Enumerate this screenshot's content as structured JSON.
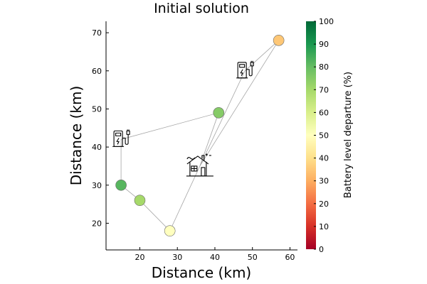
{
  "chart_data": {
    "type": "scatter",
    "title": "Initial solution",
    "xlabel": "Distance (km)",
    "ylabel": "Distance (km)",
    "xlim": [
      11,
      62
    ],
    "ylim": [
      13,
      73
    ],
    "x_ticks": [
      20,
      30,
      40,
      50,
      60
    ],
    "y_ticks": [
      20,
      30,
      40,
      50,
      60,
      70
    ],
    "grid": false,
    "points": [
      {
        "x": 15,
        "y": 30,
        "battery": 82
      },
      {
        "x": 20,
        "y": 26,
        "battery": 70
      },
      {
        "x": 28,
        "y": 18,
        "battery": 50
      },
      {
        "x": 41,
        "y": 49,
        "battery": 75
      },
      {
        "x": 57,
        "y": 68,
        "battery": 35
      }
    ],
    "depot": {
      "x": 36,
      "y": 35,
      "icon": "house-icon"
    },
    "charging_stations": [
      {
        "x": 15,
        "y": 42,
        "icon": "ev-charger-icon"
      },
      {
        "x": 48,
        "y": 60,
        "icon": "ev-charger-icon"
      }
    ],
    "routes": [
      [
        [
          36,
          35
        ],
        [
          41,
          49
        ],
        [
          15,
          42
        ],
        [
          15,
          30
        ],
        [
          20,
          26
        ],
        [
          28,
          18
        ],
        [
          36,
          35
        ]
      ],
      [
        [
          36,
          35
        ],
        [
          48,
          60
        ],
        [
          57,
          68
        ],
        [
          36,
          35
        ]
      ]
    ],
    "route_color": "#a6a6a6",
    "colorbar": {
      "label": "Battery level departure (%)",
      "min": 0,
      "max": 100,
      "ticks": [
        0,
        10,
        20,
        30,
        40,
        50,
        60,
        70,
        80,
        90,
        100
      ],
      "colormap": [
        "#a50026",
        "#d73027",
        "#f46d43",
        "#fdae61",
        "#fee08b",
        "#ffffbf",
        "#d9ef8b",
        "#a6d96a",
        "#66bd63",
        "#1a9850",
        "#006837"
      ]
    }
  }
}
